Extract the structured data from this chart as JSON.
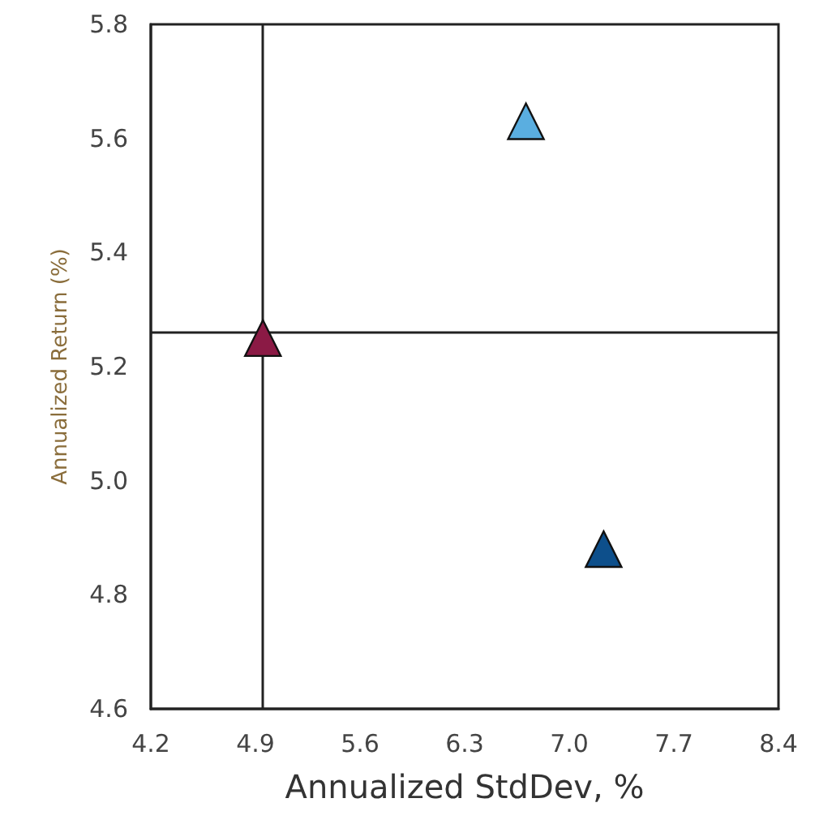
{
  "chart_data": {
    "type": "scatter",
    "xlabel": "Annualized StdDev, %",
    "ylabel": "Annualized Return (%)",
    "x": [
      4.95,
      6.71,
      7.23
    ],
    "values": [
      5.25,
      5.63,
      4.88
    ],
    "colors": [
      "#8b1a45",
      "#5aaee0",
      "#0d4f8b"
    ],
    "marker": "triangle",
    "xlim": [
      4.2,
      8.4
    ],
    "xticks": [
      4.2,
      4.9,
      5.6,
      6.3,
      {
        "value": 7,
        "label": "7.0"
      },
      7.7,
      8.4
    ],
    "ylim": [
      4.6,
      5.8
    ],
    "yticks": [
      4.6,
      4.8,
      {
        "value": 5,
        "label": "5.0"
      },
      5.2,
      5.4,
      5.6,
      5.8
    ],
    "ref_lines": [
      {
        "axis": "x",
        "value": 4.95
      },
      {
        "axis": "y",
        "value": 5.26
      }
    ],
    "grid": false
  }
}
